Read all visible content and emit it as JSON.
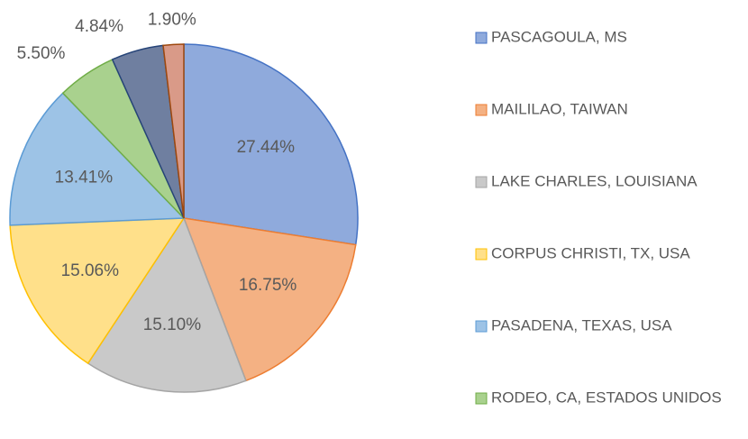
{
  "chart_data": {
    "type": "pie",
    "categories": [
      "PASCAGOULA, MS",
      "MAILILAO, TAIWAN",
      "LAKE CHARLES, LOUISIANA",
      "CORPUS CHRISTI, TX, USA",
      "PASADENA, TEXAS, USA",
      "RODEO, CA, ESTADOS UNIDOS",
      null,
      null
    ],
    "values": [
      27.44,
      16.75,
      15.1,
      15.06,
      13.41,
      5.5,
      4.84,
      1.9
    ],
    "value_labels": [
      "27.44%",
      "16.75%",
      "15.10%",
      "15.06%",
      "13.41%",
      "5.50%",
      "4.84%",
      "1.90%"
    ],
    "colors": [
      "#8faadc",
      "#f4b183",
      "#c9c9c9",
      "#ffe08a",
      "#9dc3e6",
      "#a9d18e",
      "#6f7fa0",
      "#d99a88"
    ],
    "edge_colors": [
      "#4472c4",
      "#ed7d31",
      "#a5a5a5",
      "#ffc000",
      "#5b9bd5",
      "#70ad47",
      "#264478",
      "#9e480e"
    ],
    "legend": "right"
  }
}
